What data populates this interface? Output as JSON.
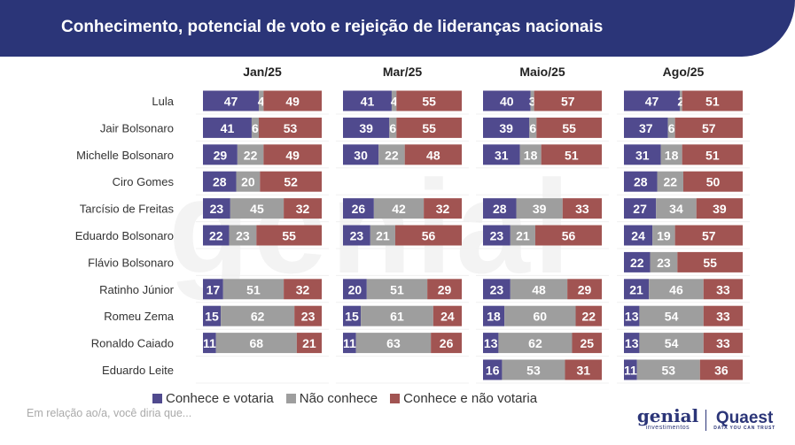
{
  "header": {
    "title": "Conhecimento, potencial de voto e rejeição de lideranças nacionais"
  },
  "watermark": "genial",
  "footnote": "Em relação ao/a, você diria que...",
  "logos": {
    "genial": "genial",
    "genial_sub": "investimentos",
    "quaest": "Quaest",
    "quaest_sub": "DATA YOU CAN TRUST"
  },
  "colors": {
    "votaria": "#504a8e",
    "nao_conhece": "#9e9e9e",
    "nao_votaria": "#a15452",
    "header_bg": "#2b3578"
  },
  "legend": [
    {
      "label": "Conhece e votaria",
      "color": "#504a8e"
    },
    {
      "label": "Não conhece",
      "color": "#9e9e9e"
    },
    {
      "label": "Conhece e não votaria",
      "color": "#a15452"
    }
  ],
  "chart_data": {
    "type": "bar",
    "orientation": "horizontal",
    "stacked": true,
    "title": "Conhecimento, potencial de voto e rejeição de lideranças nacionais",
    "unit": "%",
    "panels": [
      "Jan/25",
      "Mar/25",
      "Maio/25",
      "Ago/25"
    ],
    "categories": [
      "Lula",
      "Jair Bolsonaro",
      "Michelle Bolsonaro",
      "Ciro Gomes",
      "Tarcísio de Freitas",
      "Eduardo Bolsonaro",
      "Flávio Bolsonaro",
      "Ratinho Júnior",
      "Romeu Zema",
      "Ronaldo Caiado",
      "Eduardo Leite"
    ],
    "series_names": [
      "Conhece e votaria",
      "Não conhece",
      "Conhece e não votaria"
    ],
    "values": {
      "Jan/25": [
        [
          47,
          4,
          49
        ],
        [
          41,
          6,
          53
        ],
        [
          29,
          22,
          49
        ],
        [
          28,
          20,
          52
        ],
        [
          23,
          45,
          32
        ],
        [
          22,
          23,
          55
        ],
        null,
        [
          17,
          51,
          32
        ],
        [
          15,
          62,
          23
        ],
        [
          11,
          68,
          21
        ],
        null
      ],
      "Mar/25": [
        [
          41,
          4,
          55
        ],
        [
          39,
          6,
          55
        ],
        [
          30,
          22,
          48
        ],
        null,
        [
          26,
          42,
          32
        ],
        [
          23,
          21,
          56
        ],
        null,
        [
          20,
          51,
          29
        ],
        [
          15,
          61,
          24
        ],
        [
          11,
          63,
          26
        ],
        null
      ],
      "Maio/25": [
        [
          40,
          3,
          57
        ],
        [
          39,
          6,
          55
        ],
        [
          31,
          18,
          51
        ],
        null,
        [
          28,
          39,
          33
        ],
        [
          23,
          21,
          56
        ],
        null,
        [
          23,
          48,
          29
        ],
        [
          18,
          60,
          22
        ],
        [
          13,
          62,
          25
        ],
        [
          16,
          53,
          31
        ]
      ],
      "Ago/25": [
        [
          47,
          2,
          51
        ],
        [
          37,
          6,
          57
        ],
        [
          31,
          18,
          51
        ],
        [
          28,
          22,
          50
        ],
        [
          27,
          34,
          39
        ],
        [
          24,
          19,
          57
        ],
        [
          22,
          23,
          55
        ],
        [
          21,
          46,
          33
        ],
        [
          13,
          54,
          33
        ],
        [
          13,
          54,
          33
        ],
        [
          11,
          53,
          36
        ]
      ]
    }
  }
}
